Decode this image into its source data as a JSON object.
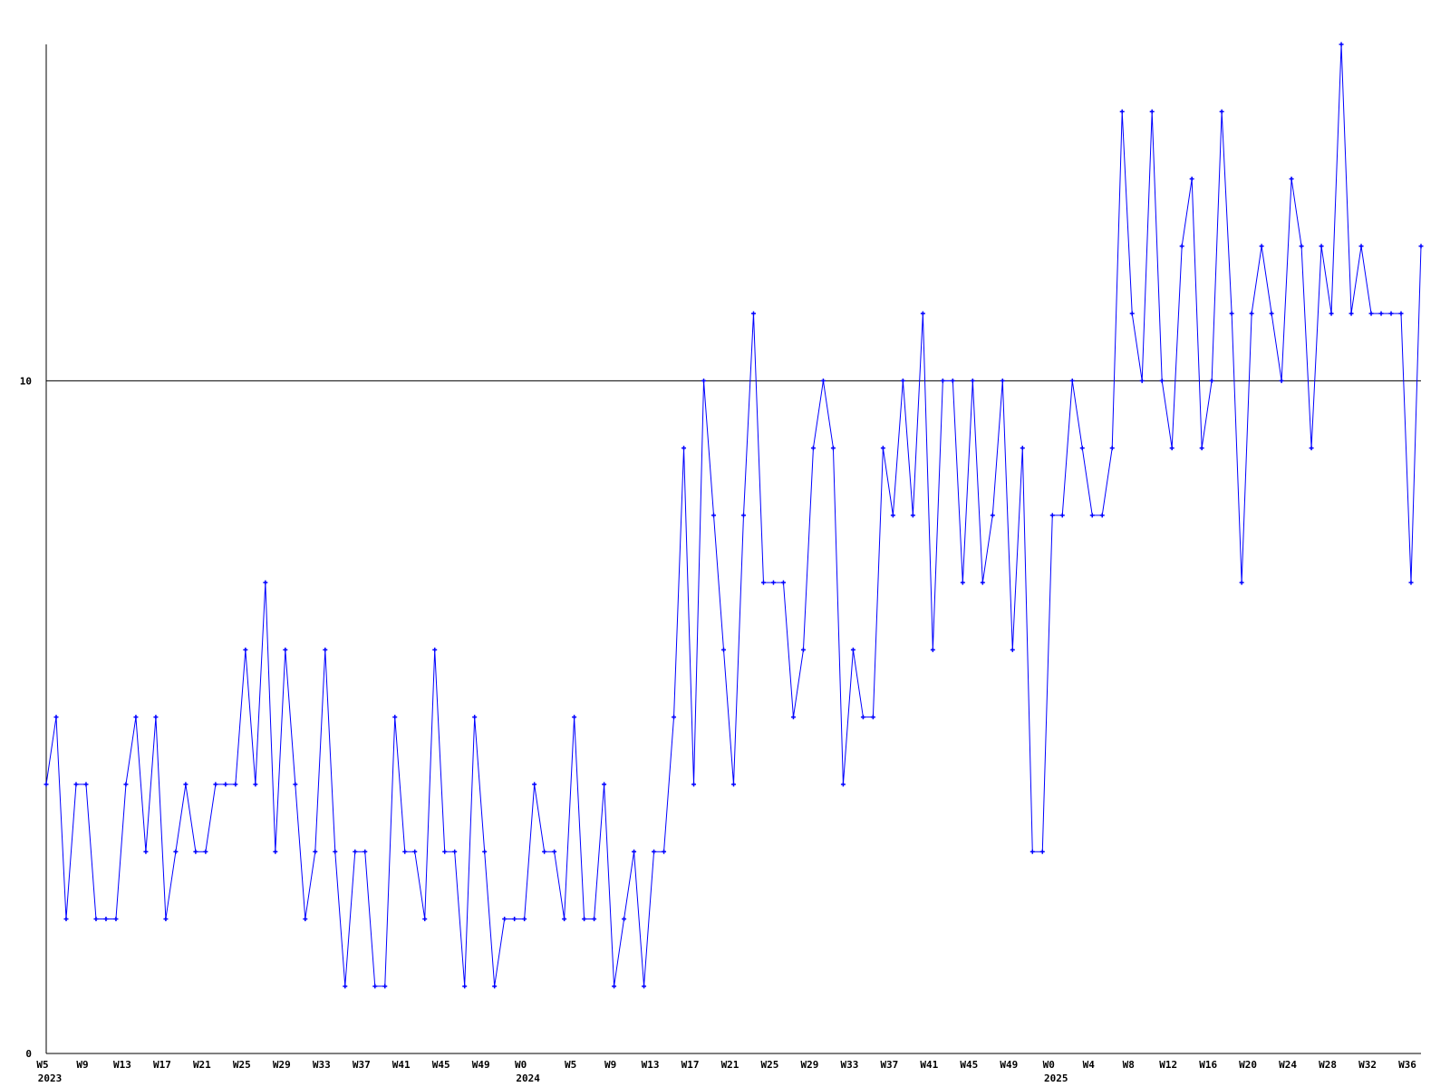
{
  "chart_data": {
    "type": "line",
    "title": "",
    "xlabel": "",
    "ylabel": "",
    "ylim": [
      0,
      15
    ],
    "y_tick_labels": [
      "0",
      "10"
    ],
    "y_ticks": [
      0,
      10
    ],
    "reference_line": 10,
    "grid": false,
    "line_color": "#0000ff",
    "axis_color": "#000000",
    "x": [
      "2023-W5",
      "2023-W6",
      "2023-W7",
      "2023-W8",
      "2023-W9",
      "2023-W10",
      "2023-W11",
      "2023-W12",
      "2023-W13",
      "2023-W14",
      "2023-W15",
      "2023-W16",
      "2023-W17",
      "2023-W18",
      "2023-W19",
      "2023-W20",
      "2023-W21",
      "2023-W22",
      "2023-W23",
      "2023-W24",
      "2023-W25",
      "2023-W26",
      "2023-W27",
      "2023-W28",
      "2023-W29",
      "2023-W30",
      "2023-W31",
      "2023-W32",
      "2023-W33",
      "2023-W34",
      "2023-W35",
      "2023-W36",
      "2023-W37",
      "2023-W38",
      "2023-W39",
      "2023-W40",
      "2023-W41",
      "2023-W42",
      "2023-W43",
      "2023-W44",
      "2023-W45",
      "2023-W46",
      "2023-W47",
      "2023-W48",
      "2023-W49",
      "2023-W50",
      "2023-W51",
      "2023-W52",
      "2024-W0",
      "2024-W1",
      "2024-W2",
      "2024-W3",
      "2024-W4",
      "2024-W5",
      "2024-W6",
      "2024-W7",
      "2024-W8",
      "2024-W9",
      "2024-W10",
      "2024-W11",
      "2024-W12",
      "2024-W13",
      "2024-W14",
      "2024-W15",
      "2024-W16",
      "2024-W17",
      "2024-W18",
      "2024-W19",
      "2024-W20",
      "2024-W21",
      "2024-W22",
      "2024-W23",
      "2024-W24",
      "2024-W25",
      "2024-W26",
      "2024-W27",
      "2024-W28",
      "2024-W29",
      "2024-W30",
      "2024-W31",
      "2024-W32",
      "2024-W33",
      "2024-W34",
      "2024-W35",
      "2024-W36",
      "2024-W37",
      "2024-W38",
      "2024-W39",
      "2024-W40",
      "2024-W41",
      "2024-W42",
      "2024-W43",
      "2024-W44",
      "2024-W45",
      "2024-W46",
      "2024-W47",
      "2024-W48",
      "2024-W49",
      "2024-W50",
      "2024-W51",
      "2024-W52",
      "2025-W0",
      "2025-W1",
      "2025-W2",
      "2025-W3",
      "2025-W4",
      "2025-W5",
      "2025-W6",
      "2025-W7",
      "2025-W8",
      "2025-W9",
      "2025-W10",
      "2025-W11",
      "2025-W12",
      "2025-W13",
      "2025-W14",
      "2025-W15",
      "2025-W16",
      "2025-W17",
      "2025-W18",
      "2025-W19",
      "2025-W20",
      "2025-W21",
      "2025-W22",
      "2025-W23",
      "2025-W24",
      "2025-W25",
      "2025-W26",
      "2025-W27",
      "2025-W28",
      "2025-W29",
      "2025-W30",
      "2025-W31",
      "2025-W32",
      "2025-W33",
      "2025-W34",
      "2025-W35",
      "2025-W36",
      "2025-W37"
    ],
    "values": [
      4,
      5,
      2,
      4,
      4,
      2,
      2,
      2,
      4,
      5,
      3,
      5,
      2,
      3,
      4,
      3,
      3,
      4,
      4,
      4,
      6,
      4,
      7,
      3,
      6,
      4,
      2,
      3,
      6,
      3,
      1,
      3,
      3,
      1,
      1,
      5,
      3,
      3,
      2,
      6,
      3,
      3,
      1,
      5,
      3,
      1,
      2,
      2,
      2,
      4,
      3,
      3,
      2,
      5,
      2,
      2,
      4,
      1,
      2,
      3,
      1,
      3,
      3,
      5,
      9,
      4,
      10,
      8,
      6,
      4,
      8,
      11,
      7,
      7,
      7,
      5,
      6,
      9,
      10,
      9,
      4,
      6,
      5,
      5,
      9,
      8,
      10,
      8,
      11,
      6,
      10,
      10,
      7,
      10,
      7,
      8,
      10,
      6,
      9,
      3,
      3,
      8,
      8,
      10,
      9,
      8,
      8,
      9,
      14,
      11,
      10,
      14,
      10,
      9,
      12,
      13,
      9,
      10,
      14,
      11,
      7,
      11,
      12,
      11,
      10,
      13,
      12,
      9,
      12,
      11,
      15,
      11,
      12,
      11,
      11,
      11,
      11,
      7,
      12
    ],
    "x_tick_labels": [
      {
        "x": "2023-W5",
        "label": "W5",
        "year": "2023"
      },
      {
        "x": "2023-W9",
        "label": "W9"
      },
      {
        "x": "2023-W13",
        "label": "W13"
      },
      {
        "x": "2023-W17",
        "label": "W17"
      },
      {
        "x": "2023-W21",
        "label": "W21"
      },
      {
        "x": "2023-W25",
        "label": "W25"
      },
      {
        "x": "2023-W29",
        "label": "W29"
      },
      {
        "x": "2023-W33",
        "label": "W33"
      },
      {
        "x": "2023-W37",
        "label": "W37"
      },
      {
        "x": "2023-W41",
        "label": "W41"
      },
      {
        "x": "2023-W45",
        "label": "W45"
      },
      {
        "x": "2023-W49",
        "label": "W49"
      },
      {
        "x": "2024-W0",
        "label": "W0",
        "year": "2024"
      },
      {
        "x": "2024-W5",
        "label": "W5"
      },
      {
        "x": "2024-W9",
        "label": "W9"
      },
      {
        "x": "2024-W13",
        "label": "W13"
      },
      {
        "x": "2024-W17",
        "label": "W17"
      },
      {
        "x": "2024-W21",
        "label": "W21"
      },
      {
        "x": "2024-W25",
        "label": "W25"
      },
      {
        "x": "2024-W29",
        "label": "W29"
      },
      {
        "x": "2024-W33",
        "label": "W33"
      },
      {
        "x": "2024-W37",
        "label": "W37"
      },
      {
        "x": "2024-W41",
        "label": "W41"
      },
      {
        "x": "2024-W45",
        "label": "W45"
      },
      {
        "x": "2024-W49",
        "label": "W49"
      },
      {
        "x": "2025-W0",
        "label": "W0",
        "year": "2025"
      },
      {
        "x": "2025-W4",
        "label": "W4"
      },
      {
        "x": "2025-W8",
        "label": "W8"
      },
      {
        "x": "2025-W12",
        "label": "W12"
      },
      {
        "x": "2025-W16",
        "label": "W16"
      },
      {
        "x": "2025-W20",
        "label": "W20"
      },
      {
        "x": "2025-W24",
        "label": "W24"
      },
      {
        "x": "2025-W28",
        "label": "W28"
      },
      {
        "x": "2025-W32",
        "label": "W32"
      },
      {
        "x": "2025-W36",
        "label": "W36"
      }
    ]
  }
}
